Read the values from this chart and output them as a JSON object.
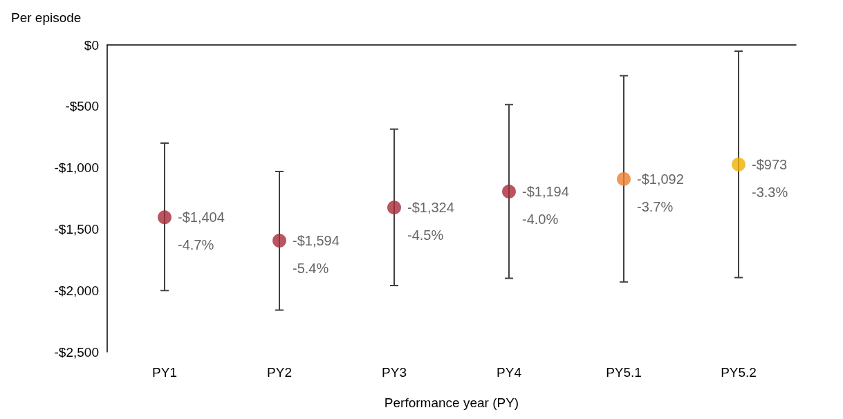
{
  "chart_data": {
    "type": "scatter",
    "ylabel": "Per episode",
    "xlabel": "Performance year (PY)",
    "categories": [
      "PY1",
      "PY2",
      "PY3",
      "PY4",
      "PY5.1",
      "PY5.2"
    ],
    "values": [
      -1404,
      -1594,
      -1324,
      -1194,
      -1092,
      -973
    ],
    "colors": [
      "#a52a3a",
      "#a52a3a",
      "#a52a3a",
      "#a52a3a",
      "#ed7d31",
      "#f0b000"
    ],
    "errors": [
      [
        -2000,
        -800
      ],
      [
        -2160,
        -1030
      ],
      [
        -1960,
        -685
      ],
      [
        -1900,
        -485
      ],
      [
        -1930,
        -250
      ],
      [
        -1895,
        -50
      ]
    ],
    "value_labels": [
      "-$1,404\n-4.7%",
      "-$1,594\n-5.4%",
      "-$1,324\n-4.5%",
      "-$1,194\n-4.0%",
      "-$1,092\n-3.7%",
      "-$973\n-3.3%"
    ],
    "ylim": [
      -2500,
      0
    ],
    "yticks": [
      {
        "value": -2500,
        "label": "-$2,500"
      },
      {
        "value": -2000,
        "label": "-$2,000"
      },
      {
        "value": -1500,
        "label": "-$1,500"
      },
      {
        "value": -1000,
        "label": "-$1,000"
      },
      {
        "value": -500,
        "label": "-$500"
      },
      {
        "value": 0,
        "label": "$0"
      }
    ],
    "grid": false,
    "marker": "circle"
  }
}
